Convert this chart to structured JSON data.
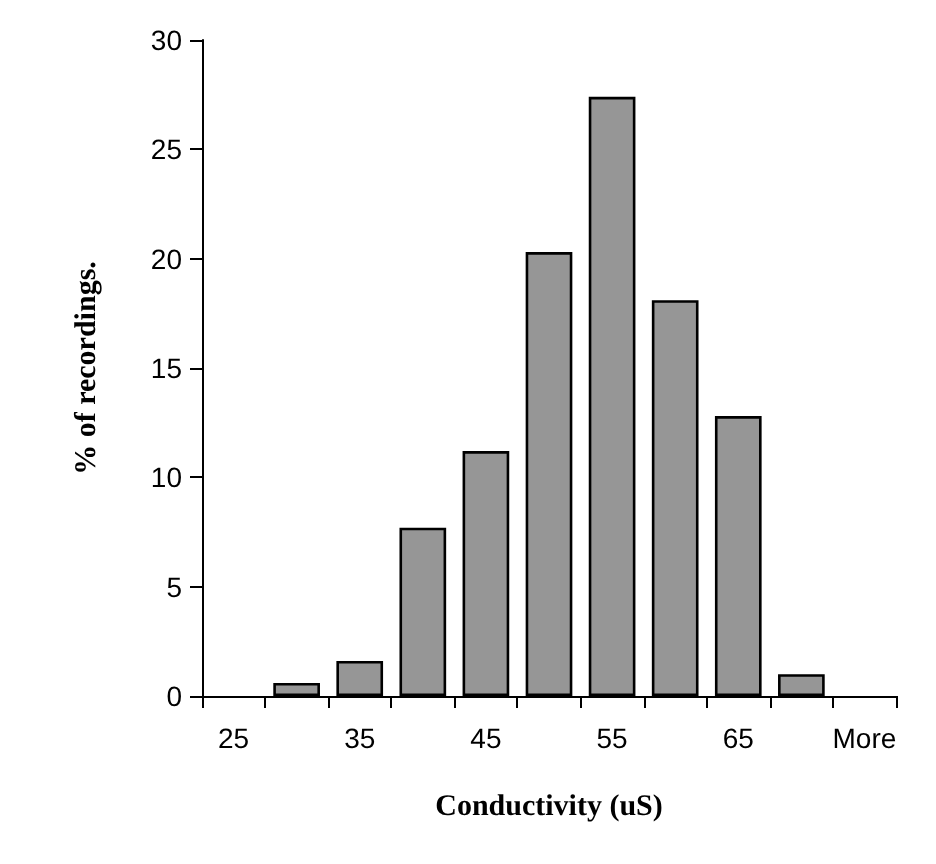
{
  "chart_data": {
    "type": "bar",
    "xlabel": "Conductivity (uS)",
    "ylabel": "% of recordings.",
    "categories": [
      "25",
      null,
      "35",
      null,
      "45",
      null,
      "55",
      null,
      "65",
      null,
      "More"
    ],
    "values": [
      0,
      0.6,
      1.6,
      7.7,
      11.2,
      20.3,
      27.4,
      18.1,
      12.8,
      1.0,
      0
    ],
    "color": "#969696",
    "ylim": [
      0,
      30
    ],
    "yticks": [
      0,
      5,
      10,
      15,
      20,
      25,
      30
    ],
    "grid": false
  }
}
